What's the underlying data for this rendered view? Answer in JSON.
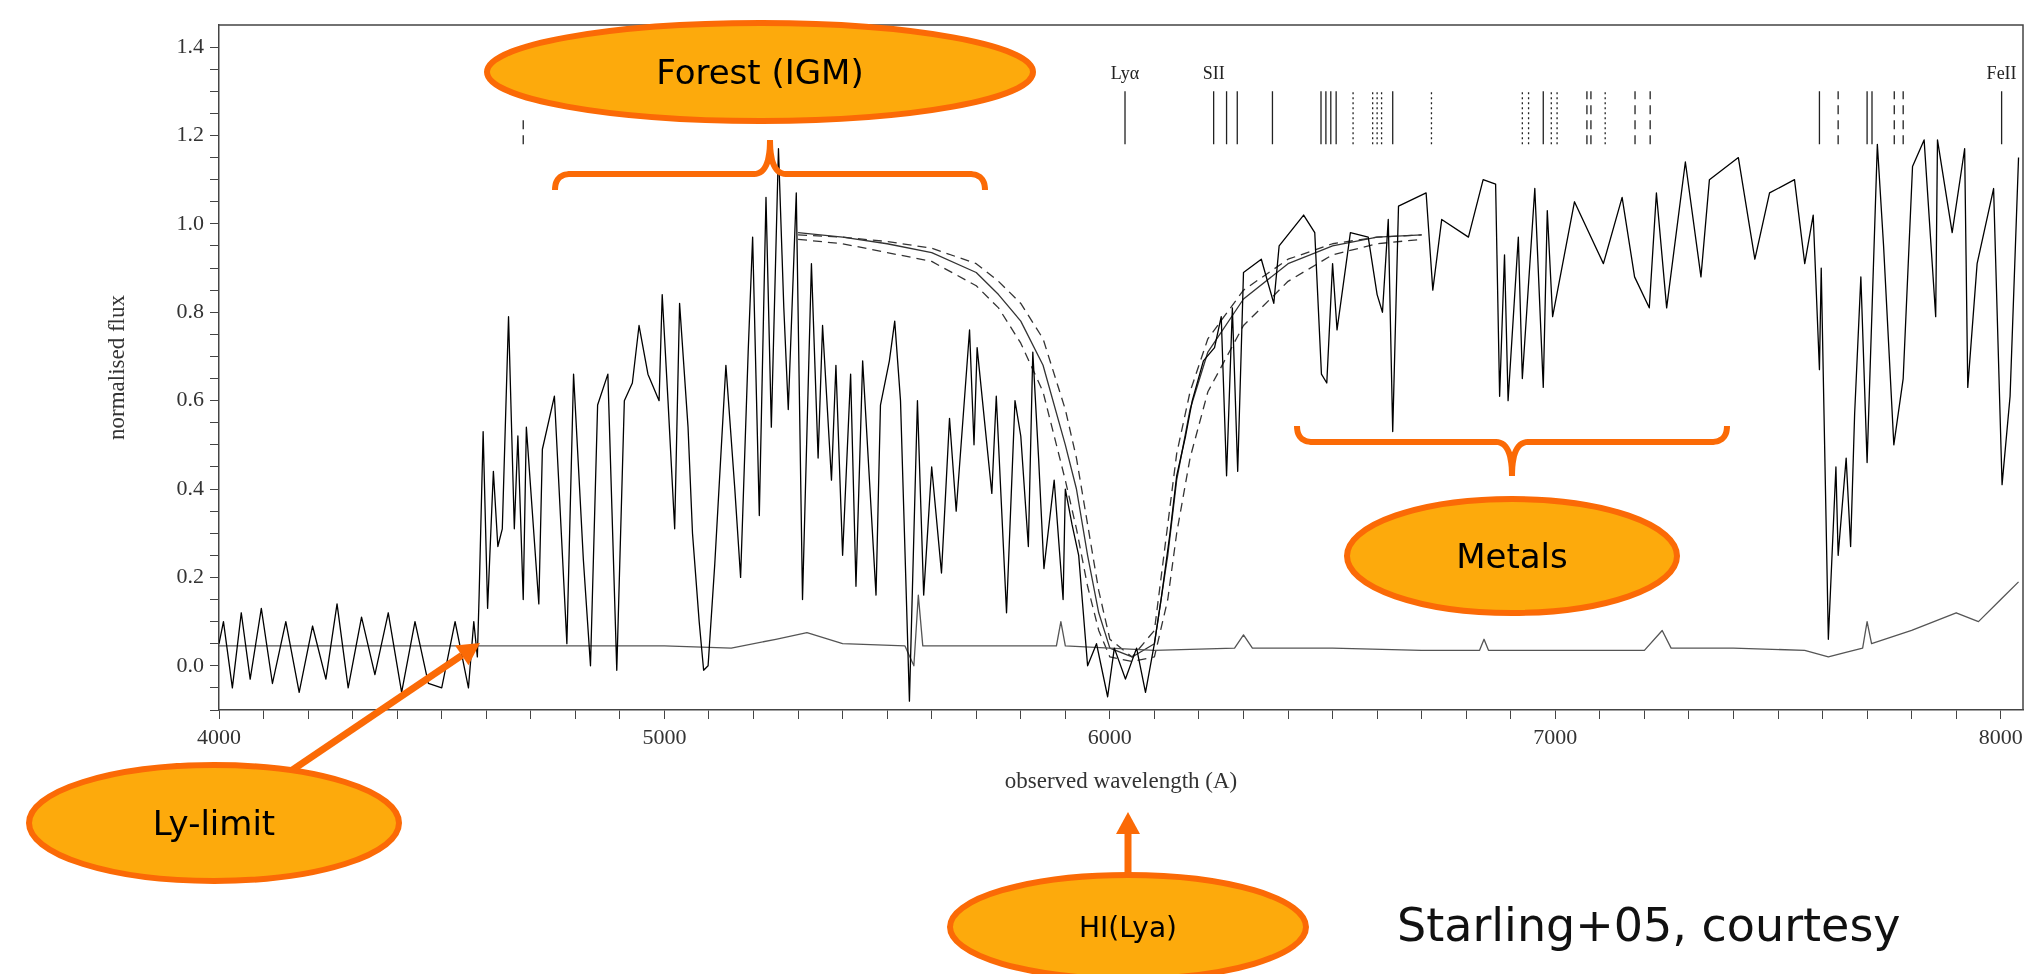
{
  "chart_data": {
    "type": "line",
    "xlabel": "observed wavelength (A)",
    "ylabel": "normalised flux",
    "xlim": [
      4000,
      8050
    ],
    "ylim": [
      -0.1,
      1.45
    ],
    "xticks": [
      4000,
      {
        "value": 4100,
        "label": null
      },
      {
        "value": 4200,
        "label": null
      },
      {
        "value": 4300,
        "label": null
      },
      {
        "value": 4400,
        "label": null
      },
      {
        "value": 4500,
        "label": null
      },
      {
        "value": 4600,
        "label": null
      },
      {
        "value": 4700,
        "label": null
      },
      {
        "value": 4800,
        "label": null
      },
      {
        "value": 4900,
        "label": null
      },
      5000,
      {
        "value": 5100,
        "label": null
      },
      {
        "value": 5200,
        "label": null
      },
      {
        "value": 5300,
        "label": null
      },
      {
        "value": 5400,
        "label": null
      },
      {
        "value": 5500,
        "label": null
      },
      {
        "value": 5600,
        "label": null
      },
      {
        "value": 5700,
        "label": null
      },
      {
        "value": 5800,
        "label": null
      },
      {
        "value": 5900,
        "label": null
      },
      6000,
      {
        "value": 6100,
        "label": null
      },
      {
        "value": 6200,
        "label": null
      },
      {
        "value": 6300,
        "label": null
      },
      {
        "value": 6400,
        "label": null
      },
      {
        "value": 6500,
        "label": null
      },
      {
        "value": 6600,
        "label": null
      },
      {
        "value": 6700,
        "label": null
      },
      {
        "value": 6800,
        "label": null
      },
      {
        "value": 6900,
        "label": null
      },
      7000,
      {
        "value": 7100,
        "label": null
      },
      {
        "value": 7200,
        "label": null
      },
      {
        "value": 7300,
        "label": null
      },
      {
        "value": 7400,
        "label": null
      },
      {
        "value": 7500,
        "label": null
      },
      {
        "value": 7600,
        "label": null
      },
      {
        "value": 7700,
        "label": null
      },
      {
        "value": 7800,
        "label": null
      },
      {
        "value": 7900,
        "label": null
      },
      8000
    ],
    "yticks": [
      {
        "value": -0.1,
        "label": null
      },
      {
        "value": -0.05,
        "label": null
      },
      {
        "value": 0,
        "label": "0.0"
      },
      {
        "value": 0.05,
        "label": null
      },
      {
        "value": 0.1,
        "label": null
      },
      {
        "value": 0.15,
        "label": null
      },
      0.2,
      {
        "value": 0.25,
        "label": null
      },
      {
        "value": 0.3,
        "label": null
      },
      {
        "value": 0.35,
        "label": null
      },
      0.4,
      {
        "value": 0.45,
        "label": null
      },
      {
        "value": 0.5,
        "label": null
      },
      {
        "value": 0.55,
        "label": null
      },
      0.6,
      {
        "value": 0.65,
        "label": null
      },
      {
        "value": 0.7,
        "label": null
      },
      {
        "value": 0.75,
        "label": null
      },
      0.8,
      {
        "value": 0.85,
        "label": null
      },
      {
        "value": 0.9,
        "label": null
      },
      {
        "value": 0.95,
        "label": null
      },
      {
        "value": 1,
        "label": "1.0"
      },
      {
        "value": 1.05,
        "label": null
      },
      {
        "value": 1.1,
        "label": null
      },
      {
        "value": 1.15,
        "label": null
      },
      1.2,
      {
        "value": 1.25,
        "label": null
      },
      {
        "value": 1.3,
        "label": null
      },
      {
        "value": 1.35,
        "label": null
      },
      1.4
    ],
    "series": [
      {
        "type": "line",
        "color": "#000000",
        "line_style": "solid",
        "x": [
          4000,
          4010,
          4030,
          4050,
          4070,
          4095,
          4120,
          4150,
          4180,
          4210,
          4240,
          4265,
          4290,
          4320,
          4350,
          4380,
          4410,
          4440,
          4470,
          4500,
          4530,
          4560,
          4572,
          4580,
          4584,
          4593,
          4603,
          4616,
          4626,
          4636,
          4650,
          4663,
          4671,
          4683,
          4690,
          4718,
          4726,
          4753,
          4781,
          4796,
          4818,
          4834,
          4850,
          4873,
          4893,
          4910,
          4928,
          4943,
          4963,
          4988,
          4995,
          5008,
          5023,
          5034,
          5053,
          5063,
          5078,
          5088,
          5098,
          5113,
          5138,
          5158,
          5171,
          5188,
          5198,
          5213,
          5228,
          5240,
          5256,
          5268,
          5278,
          5296,
          5310,
          5330,
          5345,
          5355,
          5375,
          5385,
          5400,
          5418,
          5430,
          5445,
          5475,
          5485,
          5505,
          5517,
          5530,
          5550,
          5568,
          5582,
          5600,
          5622,
          5640,
          5655,
          5685,
          5695,
          5702,
          5735,
          5745,
          5768,
          5787,
          5800,
          5817,
          5827,
          5840,
          5852,
          5875,
          5895,
          5900,
          5915,
          5930,
          5950,
          5970,
          5995,
          6010,
          6035,
          6060,
          6080,
          6100,
          6115,
          6135,
          6150,
          6170,
          6185,
          6210,
          6235,
          6250,
          6262,
          6275,
          6287,
          6300,
          6340,
          6368,
          6380,
          6435,
          6460,
          6475,
          6487,
          6500,
          6510,
          6540,
          6580,
          6600,
          6612,
          6625,
          6635,
          6648,
          6710,
          6725,
          6745,
          6805,
          6838,
          6866,
          6875,
          6886,
          6894,
          6917,
          6926,
          6954,
          6973,
          6982,
          6994,
          7043,
          7108,
          7150,
          7178,
          7211,
          7227,
          7250,
          7292,
          7327,
          7346,
          7411,
          7448,
          7481,
          7537,
          7560,
          7579,
          7593,
          7597,
          7613,
          7630,
          7635,
          7653,
          7663,
          7672,
          7686,
          7700,
          7723,
          7737,
          7760,
          7781,
          7802,
          7828,
          7854,
          7858,
          7891,
          7919,
          7926,
          7947,
          7984,
          8003,
          8021,
          8040
        ],
        "values": [
          0.05,
          0.1,
          -0.05,
          0.12,
          -0.03,
          0.13,
          -0.04,
          0.1,
          -0.06,
          0.09,
          -0.03,
          0.14,
          -0.05,
          0.11,
          -0.02,
          0.12,
          -0.06,
          0.1,
          -0.04,
          -0.05,
          0.1,
          -0.05,
          0.1,
          0.02,
          0.16,
          0.53,
          0.13,
          0.44,
          0.27,
          0.31,
          0.79,
          0.31,
          0.52,
          0.15,
          0.54,
          0.14,
          0.49,
          0.61,
          0.05,
          0.66,
          0.24,
          0.0,
          0.59,
          0.66,
          -0.01,
          0.6,
          0.64,
          0.77,
          0.66,
          0.6,
          0.84,
          0.6,
          0.31,
          0.82,
          0.54,
          0.3,
          0.1,
          -0.01,
          0.0,
          0.23,
          0.68,
          0.4,
          0.2,
          0.71,
          0.97,
          0.34,
          1.06,
          0.54,
          1.17,
          0.81,
          0.58,
          1.07,
          0.15,
          0.91,
          0.47,
          0.77,
          0.42,
          0.68,
          0.25,
          0.66,
          0.18,
          0.69,
          0.16,
          0.59,
          0.69,
          0.78,
          0.6,
          -0.08,
          0.6,
          0.16,
          0.45,
          0.21,
          0.56,
          0.35,
          0.76,
          0.5,
          0.72,
          0.39,
          0.61,
          0.12,
          0.6,
          0.52,
          0.27,
          0.71,
          0.47,
          0.22,
          0.42,
          0.15,
          0.4,
          0.32,
          0.25,
          0.0,
          0.05,
          -0.07,
          0.04,
          -0.03,
          0.04,
          -0.06,
          0.05,
          0.15,
          0.3,
          0.43,
          0.52,
          0.6,
          0.69,
          0.72,
          0.79,
          0.43,
          0.81,
          0.44,
          0.89,
          0.92,
          0.82,
          0.95,
          1.02,
          0.98,
          0.66,
          0.64,
          0.91,
          0.76,
          0.98,
          0.97,
          0.84,
          0.8,
          1.01,
          0.53,
          1.04,
          1.07,
          0.85,
          1.01,
          0.97,
          1.1,
          1.09,
          0.61,
          0.93,
          0.6,
          0.97,
          0.65,
          1.08,
          0.63,
          1.03,
          0.79,
          1.05,
          0.91,
          1.06,
          0.88,
          0.81,
          1.07,
          0.81,
          1.14,
          0.88,
          1.1,
          1.15,
          0.92,
          1.07,
          1.1,
          0.91,
          1.02,
          0.67,
          0.9,
          0.06,
          0.45,
          0.25,
          0.47,
          0.27,
          0.57,
          0.88,
          0.46,
          1.18,
          0.95,
          0.5,
          0.65,
          1.13,
          1.19,
          0.79,
          1.19,
          0.98,
          1.17,
          0.63,
          0.91,
          1.08,
          0.41,
          0.61,
          1.15
        ]
      },
      {
        "type": "line",
        "color": "#555555",
        "line_style": "solid",
        "x": [
          4000,
          4600,
          4800,
          5000,
          5150,
          5250,
          5320,
          5400,
          5540,
          5560,
          5570,
          5580,
          5600,
          5700,
          5880,
          5890,
          5900,
          6000,
          6100,
          6280,
          6300,
          6320,
          6500,
          6700,
          6830,
          6840,
          6850,
          7000,
          7200,
          7240,
          7260,
          7400,
          7560,
          7613,
          7650,
          7690,
          7700,
          7710,
          7800,
          7850,
          7900,
          7950,
          8000,
          8040
        ],
        "values": [
          0.045,
          0.045,
          0.045,
          0.045,
          0.04,
          0.06,
          0.075,
          0.05,
          0.045,
          0.0,
          0.16,
          0.045,
          0.045,
          0.045,
          0.045,
          0.1,
          0.045,
          0.04,
          0.035,
          0.04,
          0.07,
          0.04,
          0.04,
          0.035,
          0.035,
          0.06,
          0.035,
          0.035,
          0.035,
          0.08,
          0.04,
          0.04,
          0.035,
          0.02,
          0.03,
          0.04,
          0.1,
          0.05,
          0.08,
          0.1,
          0.12,
          0.1,
          0.15,
          0.19
        ]
      },
      {
        "type": "line",
        "color": "#333333",
        "line_style": "solid",
        "x": [
          5300,
          5400,
          5500,
          5600,
          5700,
          5750,
          5800,
          5850,
          5900,
          5925,
          5950,
          5975,
          6000,
          6050,
          6100,
          6130,
          6150,
          6180,
          6220,
          6300,
          6400,
          6500,
          6600,
          6700
        ],
        "values": [
          0.98,
          0.97,
          0.955,
          0.935,
          0.89,
          0.84,
          0.78,
          0.68,
          0.5,
          0.4,
          0.25,
          0.12,
          0.04,
          0.02,
          0.05,
          0.25,
          0.42,
          0.58,
          0.71,
          0.83,
          0.91,
          0.95,
          0.97,
          0.975
        ]
      },
      {
        "type": "line",
        "color": "#333333",
        "line_style": "dashed",
        "x": [
          5300,
          5400,
          5500,
          5600,
          5700,
          5750,
          5800,
          5850,
          5900,
          5925,
          5950,
          5975,
          6000,
          6050,
          6100,
          6130,
          6150,
          6180,
          6220,
          6300,
          6400,
          6500,
          6600,
          6700
        ],
        "values": [
          0.975,
          0.97,
          0.96,
          0.945,
          0.91,
          0.87,
          0.82,
          0.74,
          0.58,
          0.47,
          0.32,
          0.17,
          0.06,
          0.02,
          0.08,
          0.32,
          0.48,
          0.62,
          0.74,
          0.85,
          0.92,
          0.955,
          0.97,
          0.975
        ]
      },
      {
        "type": "line",
        "color": "#333333",
        "line_style": "dashed",
        "x": [
          5300,
          5400,
          5500,
          5600,
          5700,
          5750,
          5800,
          5850,
          5900,
          5925,
          5950,
          5975,
          6000,
          6050,
          6100,
          6130,
          6150,
          6180,
          6220,
          6300,
          6400,
          6500,
          6600,
          6700
        ],
        "values": [
          0.965,
          0.955,
          0.935,
          0.915,
          0.86,
          0.81,
          0.73,
          0.62,
          0.42,
          0.31,
          0.18,
          0.08,
          0.02,
          0.01,
          0.02,
          0.15,
          0.3,
          0.47,
          0.62,
          0.77,
          0.87,
          0.93,
          0.955,
          0.965
        ]
      },
      {
        "type": "line",
        "color": "#222222",
        "line_style": "solid",
        "x": [
          6034,
          6034,
          null,
          6233,
          6233,
          null,
          6262,
          6262,
          null,
          6286,
          6286,
          null,
          6365,
          6365,
          null,
          6474,
          6474,
          null,
          6485,
          6485,
          null,
          6496,
          6496,
          null,
          6508,
          6508,
          null,
          6635,
          6635,
          null,
          6973,
          6973,
          null,
          7593,
          7593,
          null,
          7700,
          7700,
          null,
          7711,
          7711,
          null,
          8002,
          8002,
          null
        ],
        "values": [
          1.18,
          1.3,
          null,
          1.18,
          1.3,
          null,
          1.18,
          1.3,
          null,
          1.18,
          1.3,
          null,
          1.18,
          1.3,
          null,
          1.18,
          1.3,
          null,
          1.18,
          1.3,
          null,
          1.18,
          1.3,
          null,
          1.18,
          1.3,
          null,
          1.18,
          1.3,
          null,
          1.18,
          1.3,
          null,
          1.18,
          1.3,
          null,
          1.18,
          1.3,
          null,
          1.18,
          1.3,
          null,
          1.18,
          1.3,
          null
        ]
      },
      {
        "type": "line",
        "color": "#222222",
        "line_style": "dashed",
        "x": [
          4683,
          4683,
          null,
          7071,
          7071,
          null,
          7080,
          7080,
          null,
          7179,
          7179,
          null,
          7213,
          7213,
          null,
          7635,
          7635,
          null,
          7761,
          7761,
          null,
          7781,
          7781,
          null
        ],
        "values": [
          1.18,
          1.24,
          null,
          1.18,
          1.3,
          null,
          1.18,
          1.3,
          null,
          1.18,
          1.3,
          null,
          1.18,
          1.3,
          null,
          1.18,
          1.3,
          null,
          1.18,
          1.3,
          null,
          1.18,
          1.3,
          null
        ]
      },
      {
        "type": "line",
        "color": "#222222",
        "line_style": "dotted",
        "x": [
          6546,
          6546,
          null,
          6590,
          6590,
          null,
          6600,
          6600,
          null,
          6610,
          6610,
          null,
          6722,
          6722,
          null,
          6926,
          6926,
          null,
          6940,
          6940,
          null,
          6991,
          6991,
          null,
          7004,
          7004,
          null,
          7112,
          7112,
          null
        ],
        "values": [
          1.18,
          1.3,
          null,
          1.18,
          1.3,
          null,
          1.18,
          1.3,
          null,
          1.18,
          1.3,
          null,
          1.18,
          1.3,
          null,
          1.18,
          1.3,
          null,
          1.18,
          1.3,
          null,
          1.18,
          1.3,
          null,
          1.18,
          1.3,
          null,
          1.18,
          1.3,
          null
        ]
      }
    ],
    "annotations": [
      "Forest (IGM)",
      "Ly-limit",
      "HI(Lya)",
      "Metals",
      "Starling+05, courtesy",
      {
        "text": "Lyα",
        "x": 6034,
        "y": 1.3
      },
      {
        "text": "SII",
        "x": 6233,
        "y": 1.3
      },
      {
        "text": "FeII",
        "x": 8002,
        "y": 1.3
      }
    ]
  }
}
